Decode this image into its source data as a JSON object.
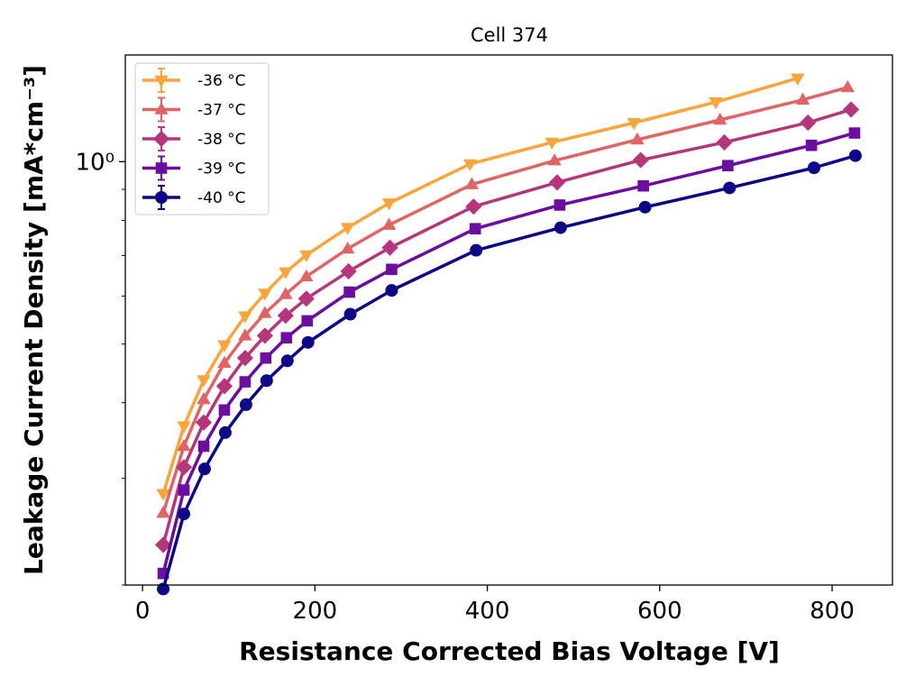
{
  "chart_data": {
    "type": "line",
    "title": "Cell 374",
    "xlabel": "Resistance Corrected Bias Voltage [V]",
    "ylabel": "Leakage Current Density [mA*cm⁻³]",
    "yscale": "log",
    "xlim": [
      -20,
      870
    ],
    "ylim": [
      0.2,
      1.5
    ],
    "x_ticks": [
      0,
      200,
      400,
      600,
      800
    ],
    "x_tick_labels": [
      "0",
      "200",
      "400",
      "600",
      "800"
    ],
    "y_ticks": [
      1
    ],
    "y_tick_labels": [
      "10⁰"
    ],
    "legend_position": "top-left",
    "series": [
      {
        "name": "-36 °C",
        "color": "#f9a53c",
        "marker": "triangle-down",
        "x": [
          24,
          48,
          71,
          95,
          119,
          142,
          166,
          190,
          238,
          286,
          380,
          475,
          570,
          665,
          760
        ],
        "y": [
          0.283,
          0.366,
          0.436,
          0.498,
          0.556,
          0.606,
          0.657,
          0.701,
          0.778,
          0.854,
          0.991,
          1.076,
          1.159,
          1.254,
          1.373
        ]
      },
      {
        "name": "-37 °C",
        "color": "#e06464",
        "marker": "triangle-up",
        "x": [
          24,
          48,
          71,
          95,
          119,
          142,
          166,
          190,
          238,
          286,
          382,
          478,
          574,
          670,
          766,
          818
        ],
        "y": [
          0.263,
          0.339,
          0.405,
          0.465,
          0.516,
          0.562,
          0.604,
          0.646,
          0.718,
          0.786,
          0.917,
          1.004,
          1.087,
          1.172,
          1.265,
          1.326
        ]
      },
      {
        "name": "-38 °C",
        "color": "#b5367a",
        "marker": "diamond",
        "x": [
          24,
          48,
          71,
          95,
          119,
          142,
          166,
          190,
          239,
          287,
          384,
          481,
          578,
          675,
          772,
          822
        ],
        "y": [
          0.233,
          0.313,
          0.371,
          0.426,
          0.474,
          0.516,
          0.557,
          0.594,
          0.659,
          0.721,
          0.843,
          0.924,
          1.006,
          1.076,
          1.16,
          1.219
        ]
      },
      {
        "name": "-39 °C",
        "color": "#6a0da0",
        "marker": "square",
        "x": [
          24,
          48,
          71,
          95,
          119,
          143,
          167,
          191,
          240,
          289,
          386,
          484,
          581,
          679,
          776,
          826
        ],
        "y": [
          0.209,
          0.287,
          0.339,
          0.389,
          0.433,
          0.474,
          0.512,
          0.546,
          0.609,
          0.664,
          0.775,
          0.848,
          0.912,
          0.985,
          1.064,
          1.115
        ]
      },
      {
        "name": "-40 °C",
        "color": "#0c0786",
        "marker": "circle",
        "x": [
          24,
          48,
          72,
          96,
          120,
          144,
          168,
          192,
          241,
          289,
          387,
          485,
          583,
          681,
          779,
          827
        ],
        "y": [
          0.197,
          0.262,
          0.311,
          0.357,
          0.397,
          0.435,
          0.469,
          0.503,
          0.56,
          0.613,
          0.714,
          0.778,
          0.841,
          0.905,
          0.977,
          1.023
        ]
      }
    ]
  }
}
